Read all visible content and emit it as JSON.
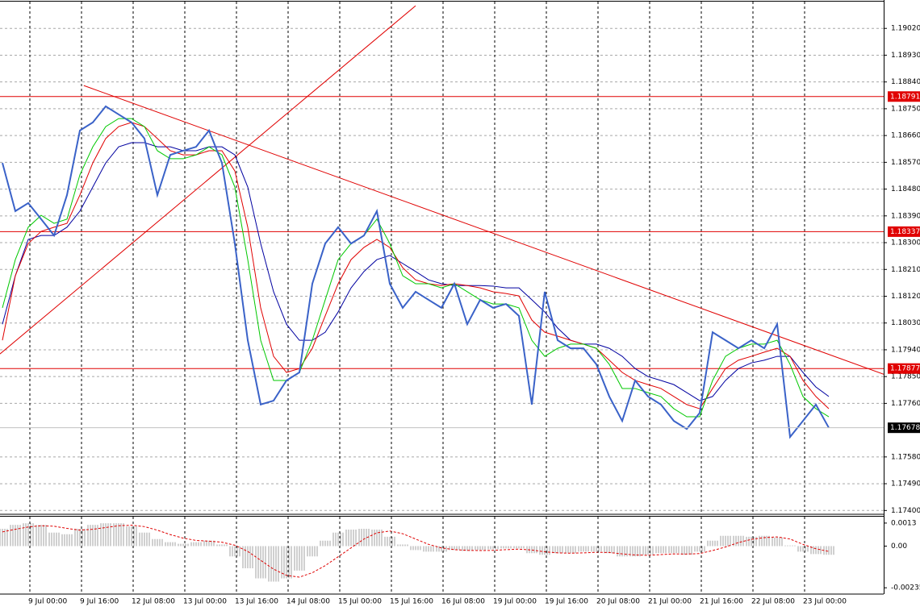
{
  "chart_data": [
    {
      "type": "line",
      "categories": [
        null,
        null,
        "9 Jul 00:00",
        null,
        null,
        null,
        "9 Jul 16:00",
        null,
        null,
        null,
        "12 Jul 08:00",
        null,
        null,
        null,
        "13 Jul 00:00",
        null,
        null,
        null,
        "13 Jul 16:00",
        null,
        null,
        null,
        "14 Jul 08:00",
        null,
        null,
        null,
        "15 Jul 00:00",
        null,
        null,
        null,
        "15 Jul 16:00",
        null,
        null,
        null,
        "16 Jul 08:00",
        null,
        null,
        null,
        "19 Jul 00:00",
        null,
        null,
        null,
        "19 Jul 16:00",
        null,
        null,
        null,
        "20 Jul 08:00",
        null,
        null,
        null,
        "21 Jul 00:00",
        null,
        null,
        null,
        "21 Jul 16:00",
        null,
        null,
        null,
        "22 Jul 08:00",
        null,
        null,
        null,
        "23 Jul 00:00",
        null,
        null
      ],
      "series": [
        {
          "color": "#3a62c8",
          "values": [
            1.18568,
            1.18406,
            1.18433,
            1.18379,
            1.18324,
            1.1846,
            1.18677,
            1.18704,
            1.18758,
            1.18731,
            1.18704,
            1.1865,
            1.1846,
            1.18595,
            1.18609,
            1.18622,
            1.18677,
            1.18568,
            1.18297,
            1.17972,
            1.17756,
            1.17769,
            1.17837,
            1.17864,
            1.18162,
            1.18297,
            1.18352,
            1.18297,
            1.18324,
            1.18406,
            1.18162,
            1.18081,
            1.18135,
            1.18108,
            1.18081,
            1.18162,
            1.18026,
            1.18108,
            1.18081,
            1.18094,
            1.18054,
            1.17756,
            1.18135,
            1.17972,
            1.17945,
            1.17945,
            1.17891,
            1.17783,
            1.17701,
            1.17837,
            1.17783,
            1.17756,
            1.17701,
            1.17674,
            1.17728,
            1.17999,
            1.17972,
            1.17945,
            1.17972,
            1.17945,
            1.18026,
            1.17647,
            1.17701,
            1.17756,
            1.17678
          ]
        },
        {
          "color": "#00c800",
          "values": [
            1.18081,
            1.18243,
            1.18352,
            1.18392,
            1.18365,
            1.18379,
            1.18528,
            1.18622,
            1.1869,
            1.18717,
            1.18717,
            1.1869,
            1.18609,
            1.18582,
            1.18582,
            1.18595,
            1.18622,
            1.18595,
            1.18487,
            1.18243,
            1.17972,
            1.17837,
            1.17837,
            1.17864,
            1.17972,
            1.18108,
            1.18243,
            1.18297,
            1.18324,
            1.18379,
            1.18297,
            1.18189,
            1.18162,
            1.18162,
            1.18148,
            1.18162,
            1.18135,
            1.18108,
            1.18094,
            1.18094,
            1.18081,
            1.17972,
            1.17918,
            1.17945,
            1.17959,
            1.17959,
            1.17945,
            1.17891,
            1.1781,
            1.1781,
            1.17796,
            1.17783,
            1.17742,
            1.17715,
            1.17715,
            1.17837,
            1.17918,
            1.17945,
            1.17959,
            1.17959,
            1.17972,
            1.17891,
            1.17783,
            1.17742,
            1.17715
          ]
        },
        {
          "color": "#e00000",
          "values": [
            1.17972,
            1.18189,
            1.18297,
            1.18338,
            1.18352,
            1.18365,
            1.1846,
            1.18568,
            1.1865,
            1.1869,
            1.18704,
            1.1869,
            1.1865,
            1.18609,
            1.18595,
            1.18595,
            1.18609,
            1.18609,
            1.18541,
            1.18352,
            1.18081,
            1.17918,
            1.17864,
            1.17877,
            1.17945,
            1.18054,
            1.18162,
            1.18243,
            1.18284,
            1.18311,
            1.18284,
            1.18216,
            1.18175,
            1.18162,
            1.18156,
            1.18162,
            1.18156,
            1.18148,
            1.18135,
            1.18129,
            1.18121,
            1.1804,
            1.17999,
            1.17986,
            1.17972,
            1.17959,
            1.17945,
            1.17905,
            1.17864,
            1.17837,
            1.17823,
            1.1781,
            1.17783,
            1.17756,
            1.17742,
            1.1781,
            1.17877,
            1.17905,
            1.17918,
            1.17932,
            1.17945,
            1.17918,
            1.17837,
            1.17783,
            1.17742
          ]
        },
        {
          "color": "#0000a0",
          "values": [
            1.18026,
            1.18189,
            1.18311,
            1.18324,
            1.18324,
            1.18352,
            1.18406,
            1.18487,
            1.18568,
            1.18622,
            1.18636,
            1.18636,
            1.18622,
            1.18622,
            1.18609,
            1.18609,
            1.18622,
            1.18622,
            1.18595,
            1.18487,
            1.18297,
            1.18135,
            1.18026,
            1.17972,
            1.17972,
            1.17999,
            1.18067,
            1.18148,
            1.18203,
            1.18243,
            1.18257,
            1.1823,
            1.18203,
            1.18175,
            1.18162,
            1.18156,
            1.18156,
            1.18156,
            1.18154,
            1.18148,
            1.18148,
            1.18108,
            1.18067,
            1.18013,
            1.17972,
            1.17959,
            1.17959,
            1.17945,
            1.17918,
            1.17877,
            1.1785,
            1.17837,
            1.17823,
            1.17796,
            1.17769,
            1.17783,
            1.17837,
            1.17877,
            1.17896,
            1.17905,
            1.17918,
            1.17918,
            1.17864,
            1.17815,
            1.17783
          ]
        }
      ],
      "ylim": [
        1.1739,
        1.1911
      ],
      "yticks": [
        {
          "value": 1.1902,
          "label": "1.19020"
        },
        {
          "value": 1.1893,
          "label": "1.18930"
        },
        {
          "value": 1.1884,
          "label": "1.18840"
        },
        {
          "value": 1.1875,
          "label": "1.18750"
        },
        {
          "value": 1.1866,
          "label": "1.18660"
        },
        {
          "value": 1.1857,
          "label": "1.18570"
        },
        {
          "value": 1.1848,
          "label": "1.18480"
        },
        {
          "value": 1.1839,
          "label": "1.18390"
        },
        {
          "value": 1.183,
          "label": "1.18300"
        },
        {
          "value": 1.1821,
          "label": "1.18210"
        },
        {
          "value": 1.1812,
          "label": "1.18120"
        },
        {
          "value": 1.1803,
          "label": "1.18030"
        },
        {
          "value": 1.1794,
          "label": "1.17940"
        },
        {
          "value": 1.1785,
          "label": "1.17850"
        },
        {
          "value": 1.1776,
          "label": "1.17760"
        },
        {
          "value": 1.1758,
          "label": "1.17580"
        },
        {
          "value": 1.1749,
          "label": "1.17490"
        },
        {
          "value": 1.174,
          "label": "1.17400"
        }
      ],
      "hlines": [
        1.18791,
        1.18337,
        1.17877
      ],
      "hline_color": "#e00000",
      "trendlines": [
        {
          "x": [
            6.3,
            68.25
          ],
          "y": [
            1.18828,
            1.17858
          ]
        },
        {
          "x": [
            -0.19,
            32
          ],
          "y": [
            1.17926,
            1.19096
          ]
        }
      ],
      "grid": true
    },
    {
      "type": "bar",
      "series": [
        {
          "color": "#a0a0a0",
          "values": [
            0.00098,
            0.0012,
            0.00129,
            0.0012,
            0.00076,
            0.00067,
            0.00098,
            0.0012,
            0.00129,
            0.00129,
            0.00111,
            0.00076,
            0.0004,
            0.00022,
            0.00013,
            0.00022,
            0.00031,
            9e-05,
            -0.00058,
            -0.00125,
            -0.00182,
            -0.002,
            -0.00182,
            -0.00138,
            -0.00058,
            0.00031,
            0.00076,
            0.00093,
            0.00098,
            0.00093,
            0.00053,
            9e-05,
            -0.00022,
            -0.00031,
            -0.00031,
            -0.00022,
            -0.00027,
            -0.00022,
            -0.00018,
            -0.00013,
            -0.00013,
            -0.0004,
            -0.00049,
            -0.0004,
            -0.0004,
            -0.00031,
            -0.00031,
            -0.0004,
            -0.00058,
            -0.00058,
            -0.00049,
            -0.0004,
            -0.0004,
            -0.00049,
            -0.00031,
            0.00031,
            0.00058,
            0.00058,
            0.00053,
            0.00058,
            0.00049,
            4e-05,
            -0.00031,
            -0.00045,
            -0.00049
          ]
        },
        {
          "color": "#e00000",
          "style": "dashed",
          "values": [
            0.0008,
            0.00095,
            0.00108,
            0.00115,
            0.00112,
            0.001,
            0.0009,
            0.00095,
            0.00105,
            0.00115,
            0.00118,
            0.0011,
            0.0009,
            0.00065,
            0.00045,
            0.00032,
            0.00028,
            0.00022,
            5e-05,
            -0.0003,
            -0.0008,
            -0.0013,
            -0.00165,
            -0.00175,
            -0.0015,
            -0.0011,
            -0.0006,
            -0.0001,
            0.0004,
            0.00075,
            0.00085,
            0.0007,
            0.0004,
            0.0001,
            -0.0001,
            -0.0002,
            -0.00024,
            -0.00025,
            -0.00024,
            -0.0002,
            -0.00017,
            -0.00022,
            -0.00032,
            -0.00038,
            -0.0004,
            -0.00038,
            -0.00035,
            -0.00036,
            -0.00044,
            -0.0005,
            -0.00052,
            -0.00048,
            -0.00044,
            -0.00045,
            -0.00042,
            -0.00025,
            -5e-05,
            0.0002,
            0.00038,
            0.00048,
            0.00052,
            0.0004,
            0.0001,
            -0.00015,
            -0.0003
          ]
        }
      ],
      "ylim": [
        -0.00266,
        0.00166
      ],
      "yticks": [
        0.0013,
        {
          "value": 0,
          "label": "0.00"
        },
        -0.00235
      ]
    }
  ]
}
